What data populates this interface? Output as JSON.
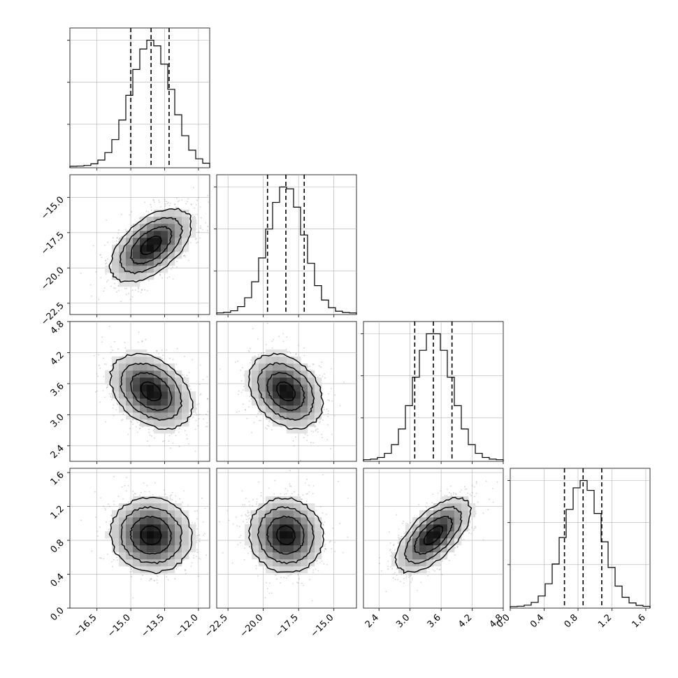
{
  "chart_data": {
    "type": "corner",
    "title": "",
    "parameters": [
      {
        "range": [
          -17.7,
          -11.5
        ],
        "ticks": [
          -16.5,
          -15.0,
          -13.5,
          -12.0
        ],
        "tick_labels": [
          "−16.5",
          "−15.0",
          "−13.5",
          "−12.0"
        ],
        "quantiles": [
          -15.0,
          -14.1,
          -13.3
        ],
        "mean": -14.1,
        "sd": 0.9
      },
      {
        "range": [
          -23.3,
          -13.4
        ],
        "ticks": [
          -22.5,
          -20.0,
          -17.5,
          -15.0
        ],
        "tick_labels": [
          "−22.5",
          "−20.0",
          "−17.5",
          "−15.0"
        ],
        "quantiles": [
          -19.7,
          -18.4,
          -17.1
        ],
        "mean": -18.4,
        "sd": 1.3
      },
      {
        "range": [
          2.1,
          4.8
        ],
        "ticks": [
          2.4,
          3.0,
          3.6,
          4.2,
          4.8
        ],
        "tick_labels": [
          "2.4",
          "3.0",
          "3.6",
          "4.2",
          "4.8"
        ],
        "quantiles": [
          3.09,
          3.45,
          3.81
        ],
        "mean": 3.45,
        "sd": 0.36
      },
      {
        "range": [
          0.0,
          1.65
        ],
        "ticks": [
          0.0,
          0.4,
          0.8,
          1.2,
          1.6
        ],
        "tick_labels": [
          "0.0",
          "0.4",
          "0.8",
          "1.2",
          "1.6"
        ],
        "quantiles": [
          0.64,
          0.86,
          1.08
        ],
        "mean": 0.86,
        "sd": 0.22
      }
    ],
    "correlations": {
      "1-0": 0.55,
      "2-0": -0.35,
      "2-1": -0.3,
      "3-0": -0.05,
      "3-1": -0.05,
      "3-2": 0.65
    },
    "histogram_bins": 20,
    "contour_levels": [
      0.5,
      1.0,
      1.5,
      2.0
    ],
    "grid": true,
    "colors": {
      "line": "#000000",
      "scatter": "#7a7a7a",
      "density_dark": "#000000",
      "density_light": "#ffffff"
    }
  }
}
